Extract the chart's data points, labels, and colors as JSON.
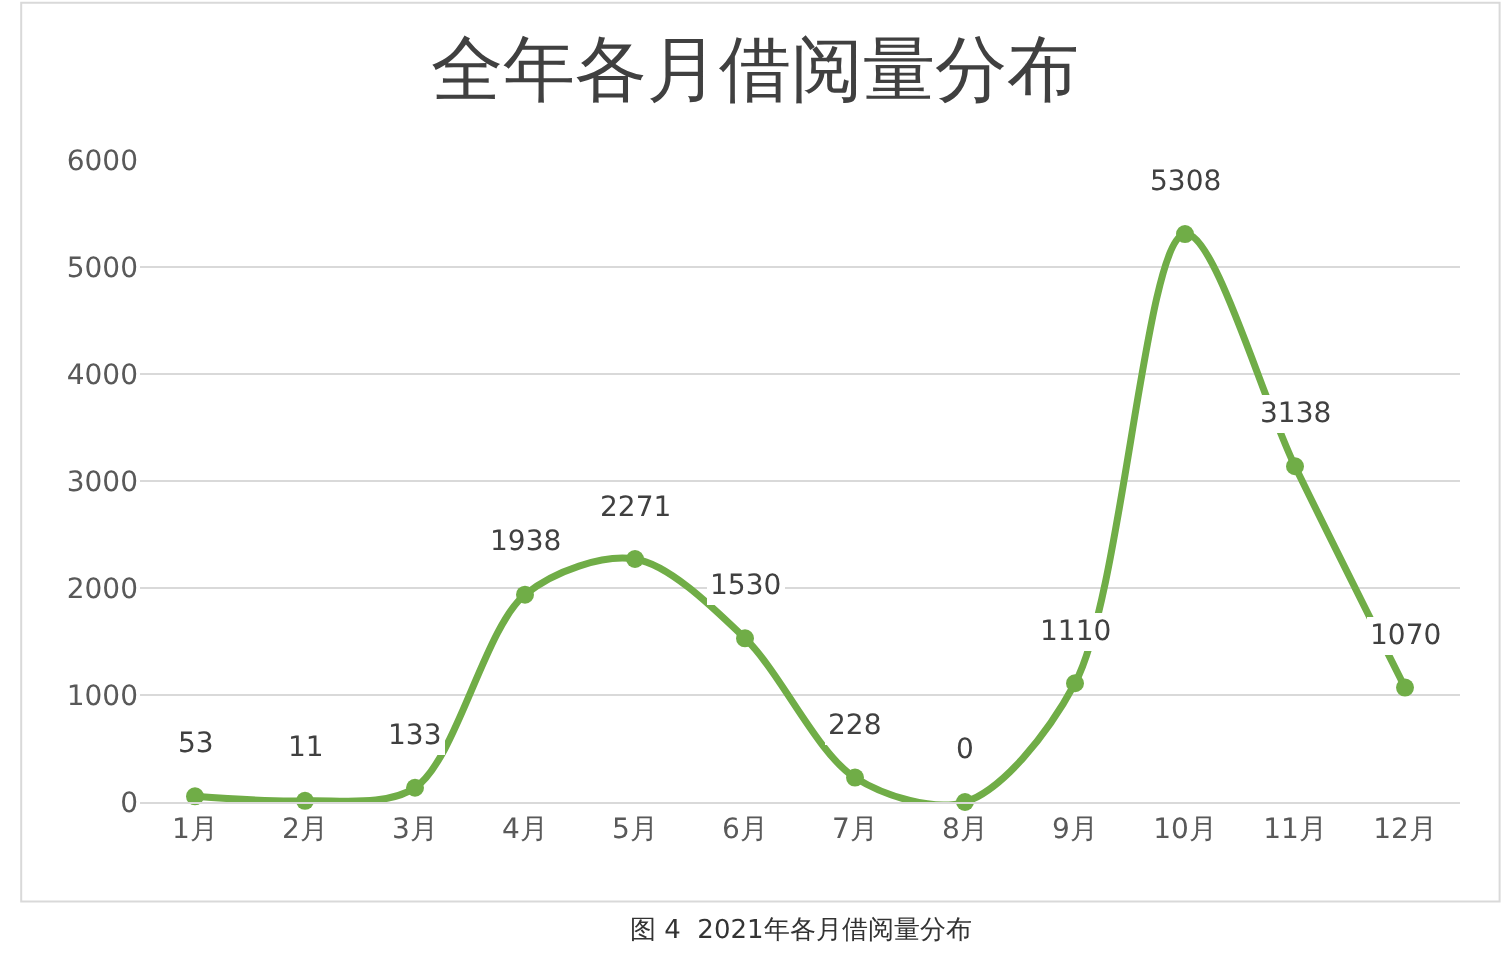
{
  "chart_data": {
    "type": "line",
    "title": "全年各月借阅量分布",
    "categories": [
      "1月",
      "2月",
      "3月",
      "4月",
      "5月",
      "6月",
      "7月",
      "8月",
      "9月",
      "10月",
      "11月",
      "12月"
    ],
    "series": [
      {
        "color": "#70ad47",
        "values": [
          53,
          11,
          133,
          1938,
          2271,
          1530,
          228,
          0,
          1110,
          5308,
          3138,
          1070
        ]
      }
    ],
    "ylim": [
      0,
      6000
    ],
    "yticks": [
      0,
      1000,
      2000,
      3000,
      4000,
      5000,
      6000
    ],
    "grid": "y",
    "marker": "circle",
    "line_style": "solid",
    "data_labels": true,
    "annotations": [
      "图 4  2021年各月借阅量分布"
    ]
  }
}
